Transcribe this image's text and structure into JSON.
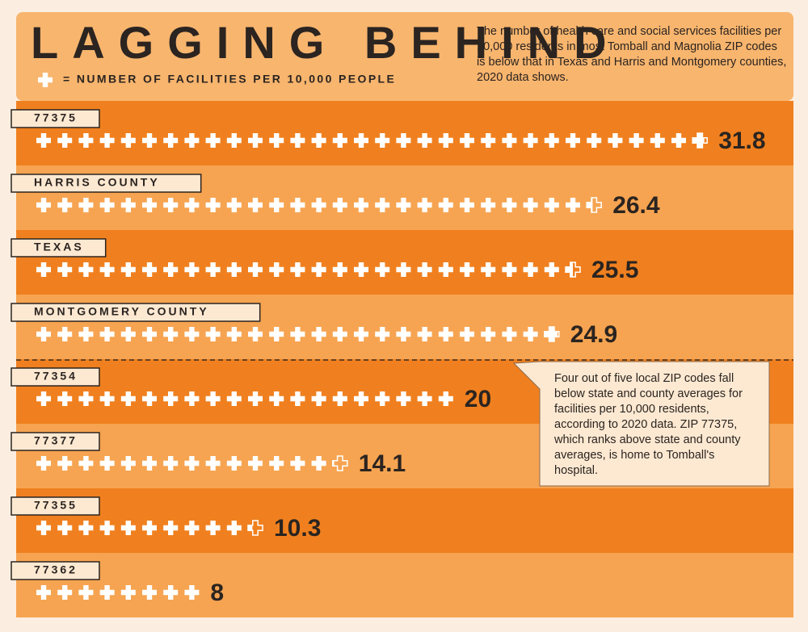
{
  "chart_data": {
    "type": "pictogram",
    "title": "LAGGING BEHIND",
    "legend": "= NUMBER OF FACILITIES PER 10,000 PEOPLE",
    "subtitle": "The number of health care and social services facilities per 10,000 residents in most Tomball and Magnolia ZIP codes is below that in Texas and Harris and Montgomery counties, 2020 data shows.",
    "annotation": "Four out of five local ZIP codes fall below state and county averages for facilities per 10,000 residents, according to 2020 data. ZIP 77375, which ranks above state and county averages, is home to Tomball's hospital.",
    "categories": [
      "77375",
      "HARRIS COUNTY",
      "TEXAS",
      "MONTGOMERY COUNTY",
      "77354",
      "77377",
      "77355",
      "77362"
    ],
    "values": [
      31.8,
      26.4,
      25.5,
      24.9,
      20,
      14.1,
      10.3,
      8
    ],
    "color": "#ffffff"
  }
}
